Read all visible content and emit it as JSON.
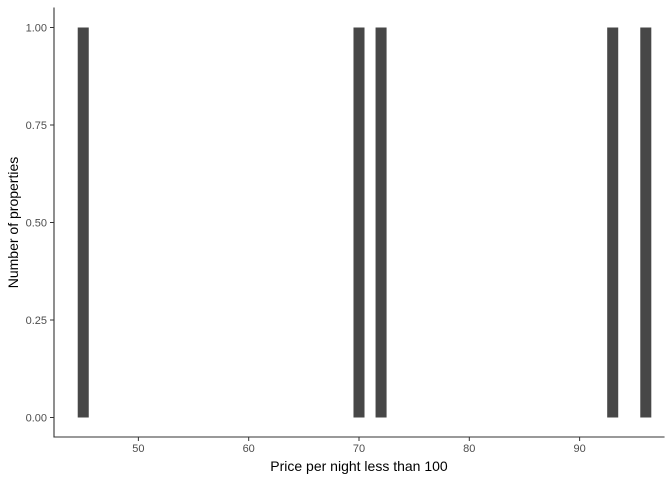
{
  "chart_data": {
    "type": "bar",
    "title": "",
    "xlabel": "Price per night less than 100",
    "ylabel": "Number of properties",
    "x": [
      45,
      70,
      72,
      93,
      96
    ],
    "values": [
      1,
      1,
      1,
      1,
      1
    ],
    "bar_width": 1,
    "xlim": [
      42.35,
      97.65
    ],
    "ylim": [
      -0.05,
      1.05
    ],
    "x_ticks": [
      50,
      60,
      70,
      80,
      90
    ],
    "x_tick_labels": [
      "50",
      "60",
      "70",
      "80",
      "90"
    ],
    "y_ticks": [
      0,
      0.25,
      0.5,
      0.75,
      1
    ],
    "y_tick_labels": [
      "0.00",
      "0.25",
      "0.50",
      "0.75",
      "1.00"
    ],
    "grid": false,
    "legend": "none",
    "colors": {
      "bar": "#474747",
      "axis": "#333333",
      "tick_text": "#4d4d4d",
      "background": "#ffffff"
    }
  }
}
